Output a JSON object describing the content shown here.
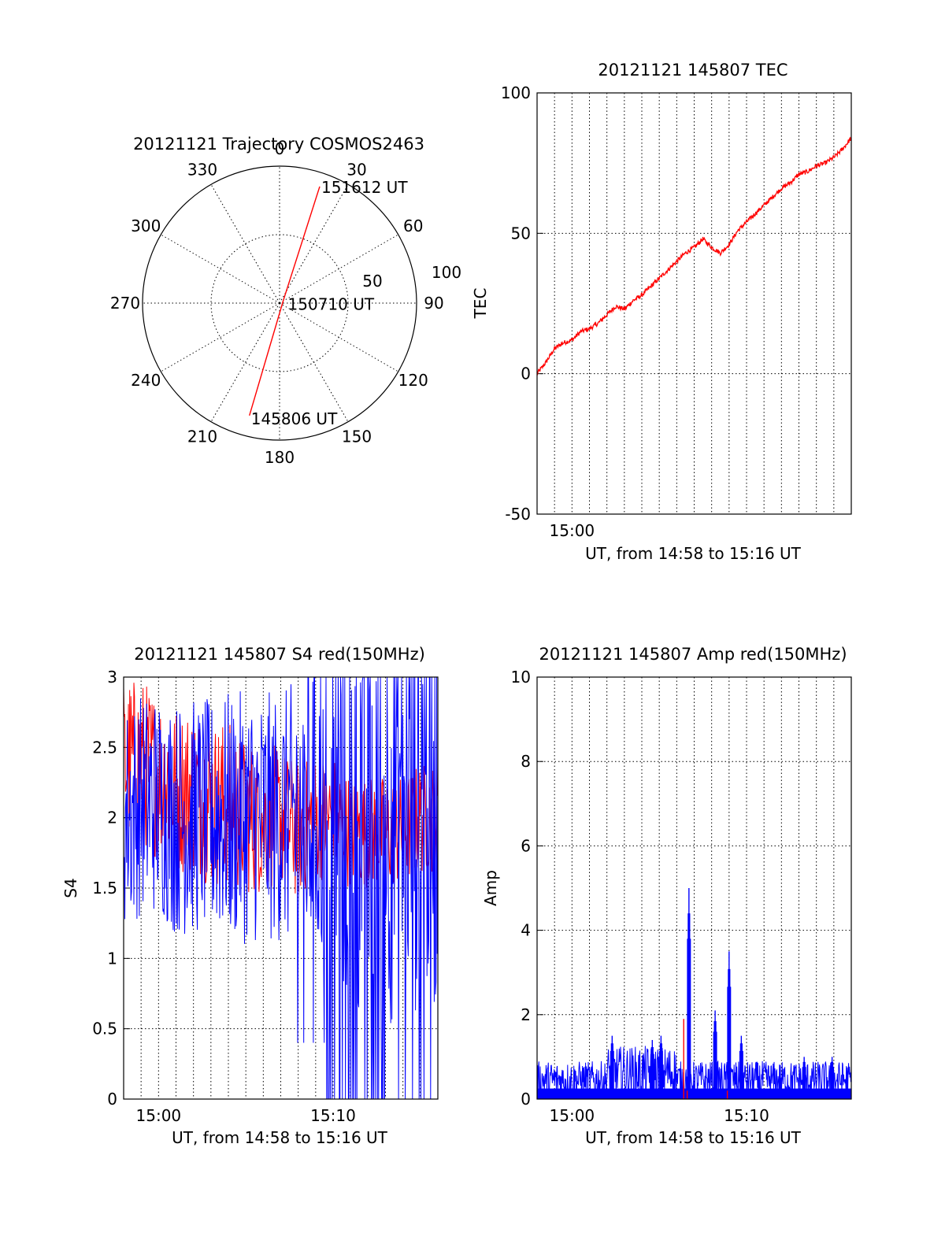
{
  "chart_data": [
    {
      "type": "polar",
      "title": "20121121 Trajectory COSMOS2463",
      "azimuth_ticks": [
        "0",
        "30",
        "60",
        "90",
        "120",
        "150",
        "180",
        "210",
        "240",
        "270",
        "300",
        "330"
      ],
      "radial_ticks": [
        "50",
        "100"
      ],
      "rlim": [
        0,
        100
      ],
      "grid": true,
      "trajectory": {
        "color": "#ff0000",
        "points": [
          {
            "az": 195,
            "r": 85,
            "label": "145806 UT"
          },
          {
            "az": 60,
            "r": 3,
            "label": "150710 UT"
          },
          {
            "az": 19,
            "r": 90,
            "label": "151612 UT"
          }
        ]
      }
    },
    {
      "type": "line",
      "title": "20121121 145807 TEC",
      "xlabel": "UT, from 14:58 to 15:16 UT",
      "ylabel": "TEC",
      "xlim": [
        0,
        18
      ],
      "ylim": [
        -50,
        100
      ],
      "x_unit": "minutes after 14:58 UT",
      "xticks": [
        {
          "x": 2,
          "label": "15:00"
        }
      ],
      "yticks": [
        {
          "y": -50,
          "label": "-50"
        },
        {
          "y": 0,
          "label": "0"
        },
        {
          "y": 50,
          "label": "50"
        },
        {
          "y": 100,
          "label": "100"
        }
      ],
      "grid": true,
      "series": [
        {
          "color": "#ff0000",
          "x": [
            0,
            0.5,
            1,
            1.5,
            2,
            2.5,
            3,
            3.5,
            4,
            4.5,
            5,
            5.5,
            6,
            6.5,
            7,
            7.5,
            8,
            8.5,
            9,
            9.5,
            10,
            10.5,
            11,
            11.5,
            12,
            12.5,
            13,
            13.5,
            14,
            14.5,
            15,
            15.5,
            16,
            16.5,
            17,
            17.5,
            18
          ],
          "y": [
            0,
            4,
            9,
            11,
            12,
            15,
            16,
            18,
            21,
            24,
            23,
            26,
            28,
            31,
            34,
            37,
            40,
            43,
            45,
            48,
            45,
            43,
            46,
            51,
            54,
            57,
            60,
            63,
            66,
            68,
            71,
            72,
            74,
            75,
            77,
            80,
            84
          ]
        }
      ]
    },
    {
      "type": "line",
      "title": "20121121 145807 S4 red(150MHz)",
      "xlabel": "UT, from 14:58 to 15:16 UT",
      "ylabel": "S4",
      "xlim": [
        0,
        18
      ],
      "ylim": [
        0,
        3
      ],
      "x_unit": "minutes after 14:58 UT",
      "xticks": [
        {
          "x": 2,
          "label": "15:00"
        },
        {
          "x": 12,
          "label": "15:10"
        }
      ],
      "yticks": [
        {
          "y": 0,
          "label": "0"
        },
        {
          "y": 0.5,
          "label": "0.5"
        },
        {
          "y": 1,
          "label": "1"
        },
        {
          "y": 1.5,
          "label": "1.5"
        },
        {
          "y": 2,
          "label": "2"
        },
        {
          "y": 2.5,
          "label": "2.5"
        },
        {
          "y": 3,
          "label": "3"
        }
      ],
      "grid": true,
      "series": [
        {
          "color": "#ff0000",
          "x": [
            0,
            1,
            2,
            3,
            4,
            5,
            6,
            7,
            8,
            9,
            10,
            11,
            12,
            13,
            14,
            15,
            16,
            17,
            18
          ],
          "y": [
            2.4,
            2.4,
            2.3,
            2.2,
            2.2,
            2.1,
            2.1,
            2.0,
            2.0,
            2.0,
            1.9,
            2.0,
            2.0,
            1.9,
            1.9,
            1.9,
            1.9,
            2.0,
            2.0
          ],
          "spread": [
            0.6,
            0.6,
            0.6,
            0.6,
            0.6,
            0.6,
            0.6,
            0.55,
            0.55,
            0.5,
            0.5,
            0.45,
            0.45,
            0.4,
            0.4,
            0.4,
            0.4,
            0.4,
            0.4
          ]
        },
        {
          "color": "#0000ff",
          "x": [
            0,
            1,
            2,
            3,
            4,
            5,
            6,
            7,
            8,
            9,
            10,
            11,
            12,
            13,
            14,
            15,
            16,
            17,
            18
          ],
          "y": [
            2.0,
            2.1,
            2.1,
            2.0,
            2.0,
            2.0,
            2.0,
            2.0,
            2.0,
            2.0,
            2.0,
            2.1,
            2.1,
            2.2,
            2.2,
            2.2,
            2.2,
            2.3,
            2.3
          ],
          "spread": [
            0.8,
            0.8,
            0.8,
            0.85,
            0.85,
            0.85,
            0.9,
            0.9,
            0.9,
            0.9,
            1.0,
            1.2,
            1.4,
            1.6,
            1.7,
            1.7,
            1.7,
            1.7,
            1.7
          ]
        }
      ]
    },
    {
      "type": "line",
      "title": "20121121 145807 Amp red(150MHz)",
      "xlabel": "UT, from 14:58 to 15:16 UT",
      "ylabel": "Amp",
      "xlim": [
        0,
        18
      ],
      "ylim": [
        0,
        10
      ],
      "x_unit": "minutes after 14:58 UT",
      "xticks": [
        {
          "x": 2,
          "label": "15:00"
        },
        {
          "x": 12,
          "label": "15:10"
        }
      ],
      "yticks": [
        {
          "y": 0,
          "label": "0"
        },
        {
          "y": 2,
          "label": "2"
        },
        {
          "y": 4,
          "label": "4"
        },
        {
          "y": 6,
          "label": "6"
        },
        {
          "y": 8,
          "label": "8"
        },
        {
          "y": 10,
          "label": "10"
        }
      ],
      "grid": true,
      "series": [
        {
          "color": "#0000ff",
          "baseline": 0.45,
          "spikes": [
            {
              "x": 4.3,
              "y": 1.5
            },
            {
              "x": 6.6,
              "y": 1.4
            },
            {
              "x": 7.1,
              "y": 1.5
            },
            {
              "x": 8.7,
              "y": 5.0
            },
            {
              "x": 10.2,
              "y": 2.1
            },
            {
              "x": 11.0,
              "y": 3.5
            },
            {
              "x": 11.7,
              "y": 1.5
            },
            {
              "x": 15.3,
              "y": 1.0
            },
            {
              "x": 16.9,
              "y": 1.0
            }
          ]
        },
        {
          "color": "#ff0000",
          "spikes": [
            {
              "x": 8.4,
              "y": 1.9
            },
            {
              "x": 8.6,
              "y": 0.2
            },
            {
              "x": 10.9,
              "y": 0.2
            }
          ]
        }
      ]
    }
  ]
}
